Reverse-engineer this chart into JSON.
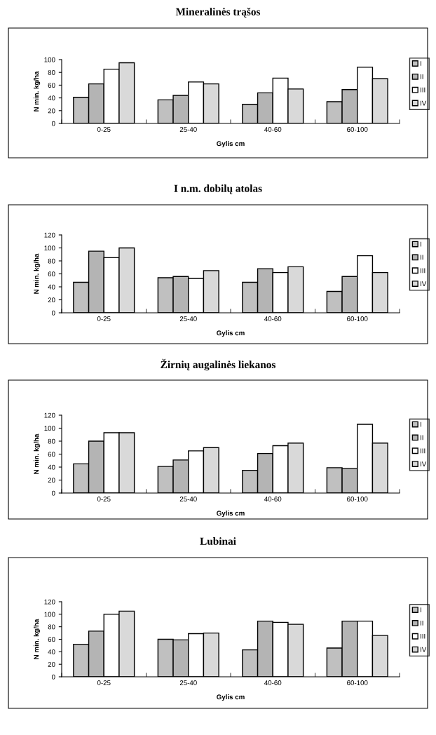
{
  "chart_data": [
    {
      "type": "bar",
      "title": "Mineralinės trąšos",
      "xlabel": "Gylis cm",
      "ylabel": "N min. kg/ha",
      "categories": [
        "0-25",
        "25-40",
        "40-60",
        "60-100"
      ],
      "ylim": [
        0,
        100
      ],
      "yticks": [
        0,
        20,
        40,
        60,
        80,
        100
      ],
      "grid": false,
      "legend": "right",
      "series": [
        {
          "name": "I",
          "color": "#c0c0c0",
          "values": [
            41,
            37,
            30,
            34
          ]
        },
        {
          "name": "II",
          "color": "#b4b4b4",
          "values": [
            62,
            44,
            48,
            53
          ]
        },
        {
          "name": "III",
          "color": "#ffffff",
          "values": [
            85,
            65,
            71,
            88
          ]
        },
        {
          "name": "IV",
          "color": "#d9d9d9",
          "values": [
            95,
            62,
            54,
            70
          ]
        }
      ]
    },
    {
      "type": "bar",
      "title": "I n.m. dobilų atolas",
      "xlabel": "Gylis cm",
      "ylabel": "N min. kg/ha",
      "categories": [
        "0-25",
        "25-40",
        "40-60",
        "60-100"
      ],
      "ylim": [
        0,
        120
      ],
      "yticks": [
        0,
        20,
        40,
        60,
        80,
        100,
        120
      ],
      "grid": false,
      "legend": "right",
      "series": [
        {
          "name": "I",
          "color": "#c0c0c0",
          "values": [
            47,
            54,
            47,
            33
          ]
        },
        {
          "name": "II",
          "color": "#b4b4b4",
          "values": [
            95,
            56,
            68,
            56
          ]
        },
        {
          "name": "III",
          "color": "#ffffff",
          "values": [
            85,
            53,
            62,
            88
          ]
        },
        {
          "name": "IV",
          "color": "#d9d9d9",
          "values": [
            100,
            65,
            71,
            62
          ]
        }
      ]
    },
    {
      "type": "bar",
      "title": "Žirnių augalinės liekanos",
      "xlabel": "Gylis cm",
      "ylabel": "N min. kg/ha",
      "categories": [
        "0-25",
        "25-40",
        "40-60",
        "60-100"
      ],
      "ylim": [
        0,
        120
      ],
      "yticks": [
        0,
        20,
        40,
        60,
        80,
        100,
        120
      ],
      "grid": false,
      "legend": "right",
      "series": [
        {
          "name": "I",
          "color": "#c0c0c0",
          "values": [
            45,
            41,
            35,
            39
          ]
        },
        {
          "name": "II",
          "color": "#b4b4b4",
          "values": [
            80,
            51,
            61,
            38
          ]
        },
        {
          "name": "III",
          "color": "#ffffff",
          "values": [
            93,
            65,
            73,
            106
          ]
        },
        {
          "name": "IV",
          "color": "#d9d9d9",
          "values": [
            93,
            70,
            77,
            77
          ]
        }
      ]
    },
    {
      "type": "bar",
      "title": "Lubinai",
      "xlabel": "Gylis cm",
      "ylabel": "N min. kg/ha",
      "categories": [
        "0-25",
        "25-40",
        "40-60",
        "60-100"
      ],
      "ylim": [
        0,
        120
      ],
      "yticks": [
        0,
        20,
        40,
        60,
        80,
        100,
        120
      ],
      "grid": false,
      "legend": "right",
      "series": [
        {
          "name": "I",
          "color": "#c0c0c0",
          "values": [
            52,
            60,
            43,
            46
          ]
        },
        {
          "name": "II",
          "color": "#b4b4b4",
          "values": [
            73,
            59,
            89,
            89
          ]
        },
        {
          "name": "III",
          "color": "#ffffff",
          "values": [
            100,
            69,
            87,
            89
          ]
        },
        {
          "name": "IV",
          "color": "#d9d9d9",
          "values": [
            105,
            70,
            84,
            66
          ]
        }
      ]
    }
  ]
}
